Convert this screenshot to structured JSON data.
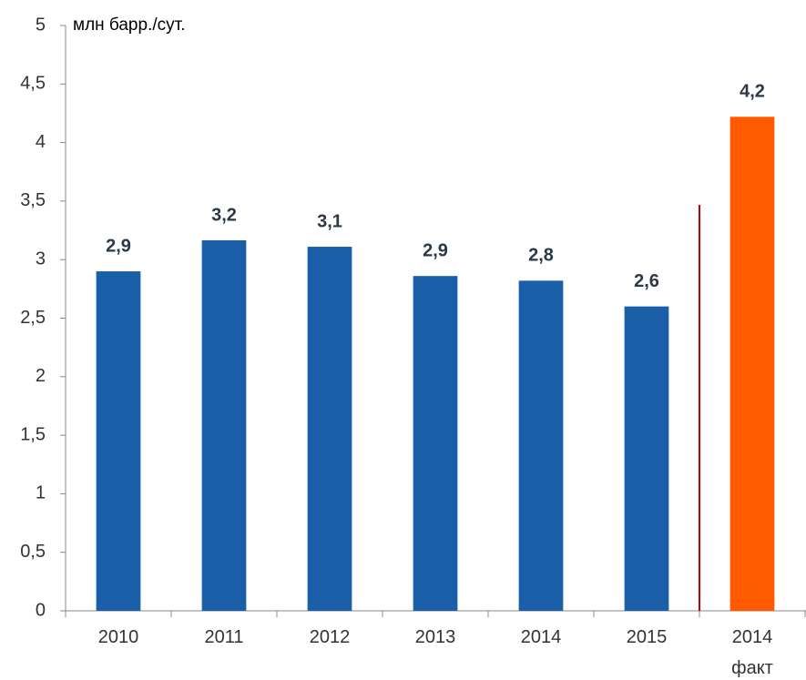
{
  "chart_data": {
    "type": "bar",
    "y_label": "млн барр./сут.",
    "categories": [
      "2010",
      "2011",
      "2012",
      "2013",
      "2014",
      "2015",
      "2014\nфакт"
    ],
    "values": [
      2.9,
      3.165,
      3.11,
      2.86,
      2.82,
      2.6,
      4.22
    ],
    "value_labels": [
      "2,9",
      "3,2",
      "3,1",
      "2,9",
      "2,8",
      "2,6",
      "4,2"
    ],
    "colors": [
      "#1a5fa8",
      "#1a5fa8",
      "#1a5fa8",
      "#1a5fa8",
      "#1a5fa8",
      "#1a5fa8",
      "#ff5a00"
    ],
    "ylim": [
      0,
      5
    ],
    "yticks": [
      0,
      {
        "value": 0.5,
        "label": "0,5"
      },
      1,
      {
        "value": 1.5,
        "label": "1,5"
      },
      2,
      {
        "value": 2.5,
        "label": "2,5"
      },
      3,
      {
        "value": 3.5,
        "label": "3,5"
      },
      4,
      {
        "value": 4.5,
        "label": "4,5"
      },
      5
    ],
    "grid": false
  }
}
